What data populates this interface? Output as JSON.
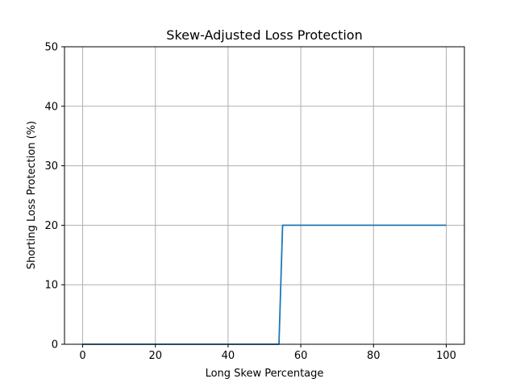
{
  "chart_data": {
    "type": "line",
    "title": "Skew-Adjusted Loss Protection",
    "xlabel": "Long Skew Percentage",
    "ylabel": "Shorting Loss Protection (%)",
    "xlim": [
      -5,
      105
    ],
    "ylim": [
      0,
      50
    ],
    "xticks": [
      "0",
      "20",
      "40",
      "60",
      "80",
      "100"
    ],
    "yticks": [
      "0",
      "10",
      "20",
      "30",
      "40",
      "50"
    ],
    "grid": true,
    "series": [
      {
        "color": "#1f77b4",
        "x": [
          0,
          54,
          55,
          100
        ],
        "y": [
          0,
          0,
          20,
          20
        ]
      }
    ]
  }
}
